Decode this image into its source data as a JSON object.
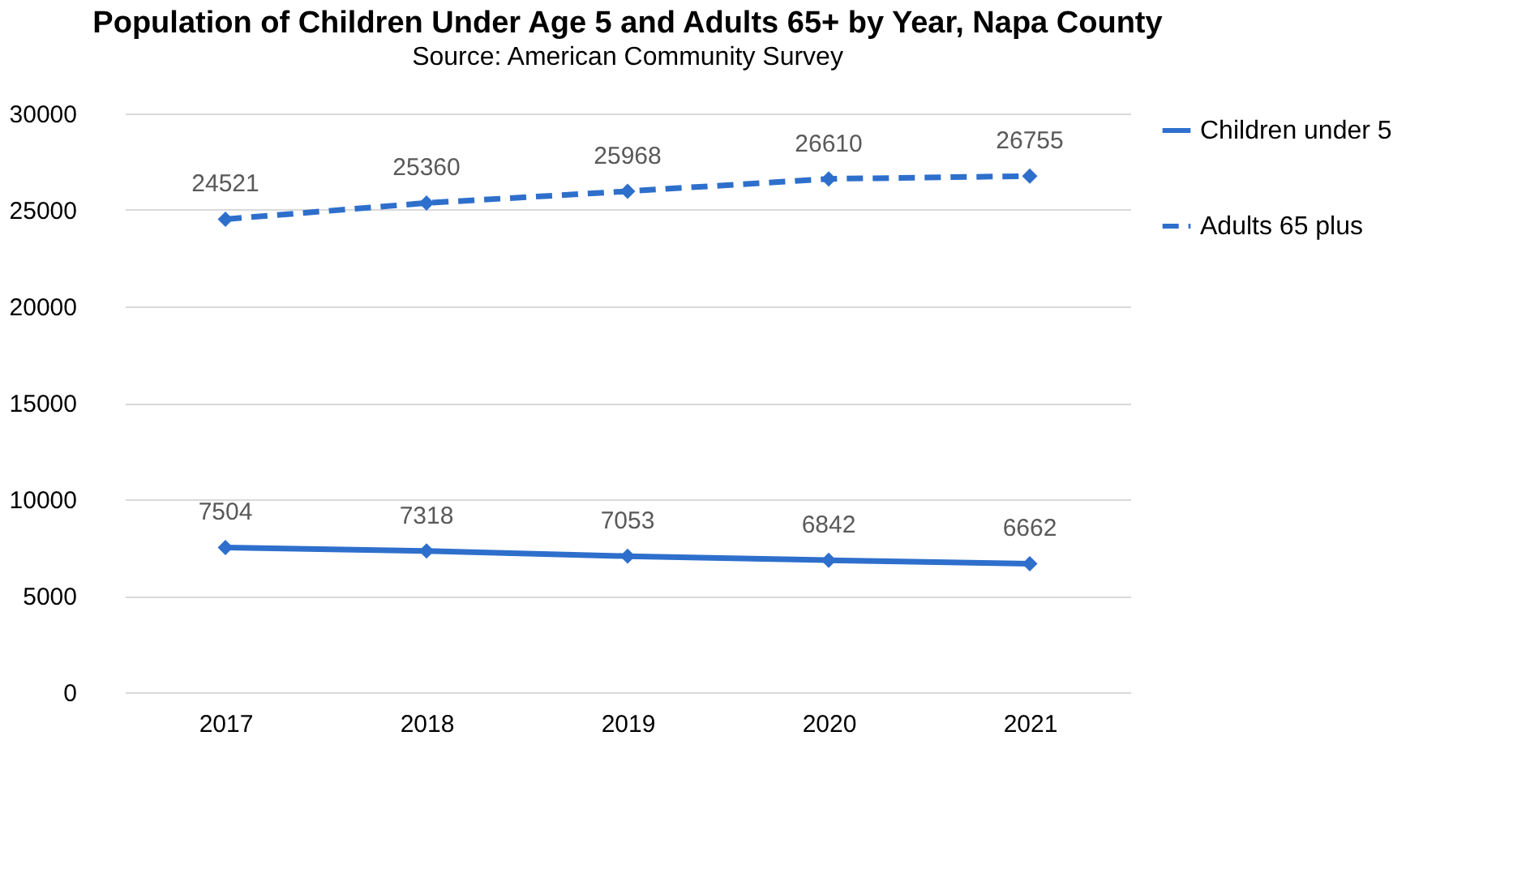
{
  "chart_data": {
    "type": "line",
    "title": "Population of Children Under Age 5 and Adults 65+ by Year, Napa County",
    "subtitle": "Source: American Community Survey",
    "categories": [
      "2017",
      "2018",
      "2019",
      "2020",
      "2021"
    ],
    "series": [
      {
        "name": "Children under 5",
        "color": "#2e6fcc",
        "values": [
          7504,
          7318,
          7053,
          6842,
          6662
        ],
        "line_style": "solid"
      },
      {
        "name": "Adults 65 plus",
        "color": "#2e6fcc",
        "values": [
          24521,
          25360,
          25968,
          26610,
          26755
        ],
        "line_style": "dashed"
      }
    ],
    "ylim": [
      0,
      30000
    ],
    "yticks": [
      0,
      5000,
      10000,
      15000,
      20000,
      25000,
      30000
    ],
    "grid": "y",
    "legend": "right",
    "marker": "diamond",
    "data_labels": true
  }
}
